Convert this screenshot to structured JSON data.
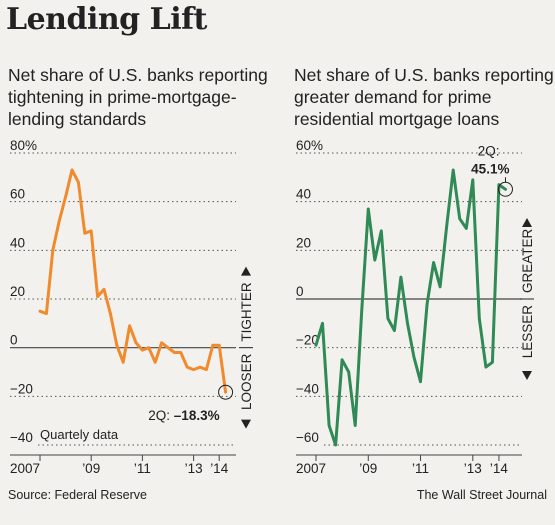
{
  "title": "Lending Lift",
  "source": "Source: Federal Reserve",
  "credit": "The Wall Street Journal",
  "colors": {
    "left_line": "#f08a2c",
    "right_line": "#2f8a55",
    "grid": "#555555"
  },
  "chart_data": [
    {
      "type": "line",
      "title": "Net share of U.S. banks reporting tightening in prime-mortgage-lending standards",
      "subtitle_lines": [
        "Net share of U.S. banks reporting",
        "tightening in prime-mortgage-",
        "lending standards"
      ],
      "ylim": [
        -40,
        80
      ],
      "ytick_labels": [
        "80%",
        "60",
        "40",
        "20",
        "0",
        "−20",
        "−40"
      ],
      "ytick_values": [
        80,
        60,
        40,
        20,
        0,
        -20,
        -40
      ],
      "xlim": [
        2007,
        2014.5
      ],
      "xtick_labels": [
        "2007",
        "’09",
        "’11",
        "’13",
        "’14"
      ],
      "xtick_values": [
        2007,
        2009,
        2011,
        2013,
        2014
      ],
      "axis_arrow_labels": {
        "up": "TIGHTER",
        "down": "LOOSER"
      },
      "note": "Quartely data",
      "callout": {
        "prefix": "2Q:",
        "value": "–18.3%"
      },
      "series": [
        {
          "x": [
            2007.0,
            2007.25,
            2007.5,
            2007.75,
            2008.0,
            2008.25,
            2008.5,
            2008.75,
            2009.0,
            2009.25,
            2009.5,
            2009.75,
            2010.0,
            2010.25,
            2010.5,
            2010.75,
            2011.0,
            2011.25,
            2011.5,
            2011.75,
            2012.0,
            2012.25,
            2012.5,
            2012.75,
            2013.0,
            2013.25,
            2013.5,
            2013.75,
            2014.0,
            2014.25
          ],
          "values": [
            15,
            14,
            40,
            52,
            62,
            73,
            68,
            47,
            48,
            21,
            24,
            14,
            1,
            -6,
            9,
            2,
            -1,
            0,
            -6,
            2,
            0,
            -2,
            -2,
            -8,
            -9,
            -8,
            -9,
            1,
            1,
            -18.3
          ]
        }
      ]
    },
    {
      "type": "line",
      "title": "Net share of U.S. banks reporting greater demand for prime residential mortgage loans",
      "subtitle_lines": [
        "Net share of U.S. banks reporting",
        "greater demand for prime",
        "residential mortgage loans"
      ],
      "ylim": [
        -60,
        60
      ],
      "ytick_labels": [
        "60%",
        "40",
        "20",
        "0",
        "−20",
        "−40",
        "−60"
      ],
      "ytick_values": [
        60,
        40,
        20,
        0,
        -20,
        -40,
        -60
      ],
      "xlim": [
        2007,
        2014.5
      ],
      "xtick_labels": [
        "2007",
        "’09",
        "’11",
        "’13",
        "’14"
      ],
      "xtick_values": [
        2007,
        2009,
        2011,
        2013,
        2014
      ],
      "axis_arrow_labels": {
        "up": "GREATER",
        "down": "LESSER"
      },
      "callout": {
        "prefix": "2Q:",
        "value": "45.1%"
      },
      "series": [
        {
          "x": [
            2007.0,
            2007.25,
            2007.5,
            2007.75,
            2008.0,
            2008.25,
            2008.5,
            2008.75,
            2009.0,
            2009.25,
            2009.5,
            2009.75,
            2010.0,
            2010.25,
            2010.5,
            2010.75,
            2011.0,
            2011.25,
            2011.5,
            2011.75,
            2012.0,
            2012.25,
            2012.5,
            2012.75,
            2013.0,
            2013.25,
            2013.5,
            2013.75,
            2014.0,
            2014.25
          ],
          "values": [
            -19,
            -10,
            -52,
            -60,
            -25,
            -30,
            -52,
            -5,
            37,
            16,
            28,
            -8,
            -13,
            9,
            -10,
            -24,
            -34,
            -2,
            15,
            5,
            30,
            53,
            33,
            29,
            49,
            -8,
            -28,
            -26,
            47,
            45.1
          ]
        }
      ]
    }
  ]
}
